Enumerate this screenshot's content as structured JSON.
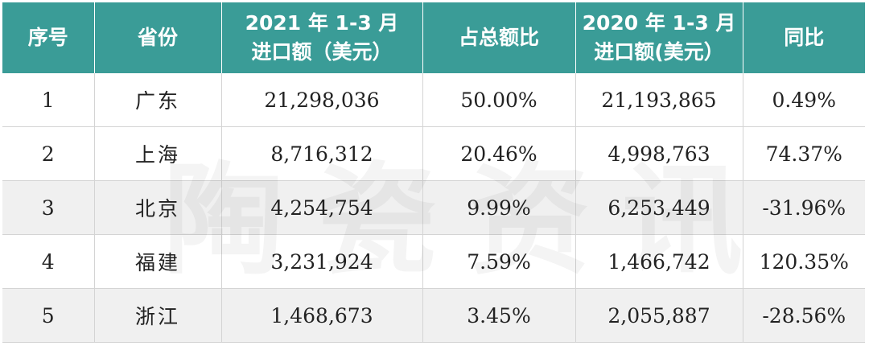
{
  "headers": [
    {
      "line1": "序号",
      "line2": ""
    },
    {
      "line1": "省份",
      "line2": ""
    },
    {
      "line1": "2021 年 1-3 月",
      "line2": "进口额（美元）"
    },
    {
      "line1": "占总额比",
      "line2": ""
    },
    {
      "line1": "2020 年 1-3 月",
      "line2": "进口额(美元）"
    },
    {
      "line1": "同比",
      "line2": ""
    }
  ],
  "rows": [
    {
      "no": "1",
      "province": "广东",
      "imp2021": "21,298,036",
      "share": "50.00%",
      "imp2020": "21,193,865",
      "yoy": "0.49%"
    },
    {
      "no": "2",
      "province": "上海",
      "imp2021": "8,716,312",
      "share": "20.46%",
      "imp2020": "4,998,763",
      "yoy": "74.37%"
    },
    {
      "no": "3",
      "province": "北京",
      "imp2021": "4,254,754",
      "share": "9.99%",
      "imp2020": "6,253,449",
      "yoy": "-31.96%"
    },
    {
      "no": "4",
      "province": "福建",
      "imp2021": "3,231,924",
      "share": "7.59%",
      "imp2020": "1,466,742",
      "yoy": "120.35%"
    },
    {
      "no": "5",
      "province": "浙江",
      "imp2021": "1,468,673",
      "share": "3.45%",
      "imp2020": "2,055,887",
      "yoy": "-28.56%"
    }
  ],
  "watermark": "陶瓷资讯",
  "colors": {
    "header_bg": "#3a9c97",
    "header_text": "#ffffff",
    "shaded_row": "#f0f0f0"
  }
}
